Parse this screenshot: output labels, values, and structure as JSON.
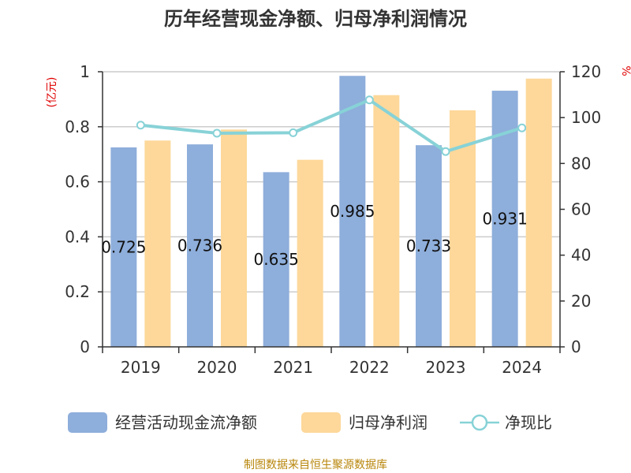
{
  "chart_data": {
    "type": "bar",
    "title": "历年经营现金净额、归母净利润情况",
    "categories": [
      "2019",
      "2020",
      "2021",
      "2022",
      "2023",
      "2024"
    ],
    "series": [
      {
        "name": "经营活动现金流净额",
        "kind": "bar",
        "axis": "left",
        "color": "#8eaedb",
        "values": [
          0.725,
          0.736,
          0.635,
          0.985,
          0.733,
          0.931
        ],
        "labels": [
          "0.725",
          "0.736",
          "0.635",
          "0.985",
          "0.733",
          "0.931"
        ]
      },
      {
        "name": "归母净利润",
        "kind": "bar",
        "axis": "left",
        "color": "#fdd89a",
        "values": [
          0.75,
          0.79,
          0.68,
          0.915,
          0.86,
          0.975
        ]
      },
      {
        "name": "净现比",
        "kind": "line",
        "axis": "right",
        "color": "#87d2d7",
        "values": [
          96.7,
          93.2,
          93.4,
          107.7,
          85.2,
          95.5
        ]
      }
    ],
    "y_left": {
      "unit": "(亿元)",
      "ylim": [
        0,
        1
      ],
      "ticks": [
        0,
        0.2,
        0.4,
        0.6,
        0.8,
        1
      ],
      "tick_labels": [
        "0",
        "0.2",
        "0.4",
        "0.6",
        "0.8",
        "1"
      ]
    },
    "y_right": {
      "unit": "%",
      "ylim": [
        0,
        120
      ],
      "ticks": [
        0,
        20,
        40,
        60,
        80,
        100,
        120
      ],
      "tick_labels": [
        "0",
        "20",
        "40",
        "60",
        "80",
        "100",
        "120"
      ]
    },
    "grid": true,
    "legend_position": "bottom",
    "source": "制图数据来自恒生聚源数据库"
  }
}
